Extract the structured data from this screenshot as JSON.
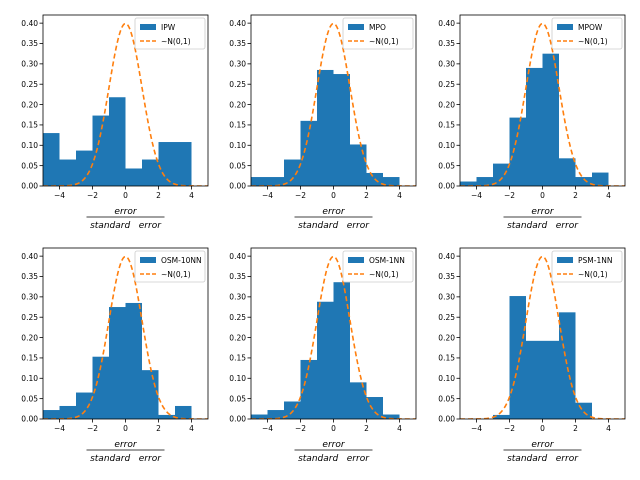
{
  "colors": {
    "bar": "#1f77b4",
    "normal_curve": "#ff7f0e",
    "axes": "#000000",
    "background": "#ffffff"
  },
  "chart_data": [
    {
      "type": "bar",
      "title": "",
      "legend": [
        "IPW",
        "~N(0,1)"
      ],
      "legend_position": "top-right",
      "xlabel_numerator": "error",
      "xlabel_denominator": "standard   error",
      "xlim": [
        -5,
        5
      ],
      "ylim": [
        0,
        0.42
      ],
      "xticks": [
        -4,
        -2,
        0,
        2,
        4
      ],
      "yticks": [
        0.0,
        0.05,
        0.1,
        0.15,
        0.2,
        0.25,
        0.3,
        0.35,
        0.4
      ],
      "ytick_labels": [
        "0.00",
        "0.05",
        "0.10",
        "0.15",
        "0.20",
        "0.25",
        "0.30",
        "0.35",
        "0.40"
      ],
      "bin_edges": [
        -5.0,
        -4.0,
        -3.0,
        -2.0,
        -1.0,
        0.0,
        1.0,
        2.0,
        3.0,
        4.0
      ],
      "values": [
        0.13,
        0.065,
        0.087,
        0.173,
        0.218,
        0.043,
        0.065,
        0.108,
        0.108
      ]
    },
    {
      "type": "bar",
      "title": "",
      "legend": [
        "MPO",
        "~N(0,1)"
      ],
      "legend_position": "top-right",
      "xlabel_numerator": "error",
      "xlabel_denominator": "standard   error",
      "xlim": [
        -5,
        5
      ],
      "ylim": [
        0,
        0.42
      ],
      "xticks": [
        -4,
        -2,
        0,
        2,
        4
      ],
      "yticks": [
        0.0,
        0.05,
        0.1,
        0.15,
        0.2,
        0.25,
        0.3,
        0.35,
        0.4
      ],
      "ytick_labels": [
        "0.00",
        "0.05",
        "0.10",
        "0.15",
        "0.20",
        "0.25",
        "0.30",
        "0.35",
        "0.40"
      ],
      "bin_edges": [
        -5.0,
        -4.0,
        -3.0,
        -2.0,
        -1.0,
        0.0,
        1.0,
        2.0,
        3.0,
        4.0
      ],
      "values": [
        0.022,
        0.022,
        0.065,
        0.16,
        0.285,
        0.275,
        0.102,
        0.032,
        0.022
      ]
    },
    {
      "type": "bar",
      "title": "",
      "legend": [
        "MPOW",
        "~N(0,1)"
      ],
      "legend_position": "top-right",
      "xlabel_numerator": "error",
      "xlabel_denominator": "standard   error",
      "xlim": [
        -5,
        5
      ],
      "ylim": [
        0,
        0.42
      ],
      "xticks": [
        -4,
        -2,
        0,
        2,
        4
      ],
      "yticks": [
        0.0,
        0.05,
        0.1,
        0.15,
        0.2,
        0.25,
        0.3,
        0.35,
        0.4
      ],
      "ytick_labels": [
        "0.00",
        "0.05",
        "0.10",
        "0.15",
        "0.20",
        "0.25",
        "0.30",
        "0.35",
        "0.40"
      ],
      "bin_edges": [
        -5.0,
        -4.0,
        -3.0,
        -2.0,
        -1.0,
        0.0,
        1.0,
        2.0,
        3.0,
        4.0
      ],
      "values": [
        0.011,
        0.022,
        0.055,
        0.168,
        0.29,
        0.325,
        0.068,
        0.022,
        0.033
      ]
    },
    {
      "type": "bar",
      "title": "",
      "legend": [
        "OSM-10NN",
        "~N(0,1)"
      ],
      "legend_position": "top-right",
      "xlabel_numerator": "error",
      "xlabel_denominator": "standard   error",
      "xlim": [
        -5,
        5
      ],
      "ylim": [
        0,
        0.42
      ],
      "xticks": [
        -4,
        -2,
        0,
        2,
        4
      ],
      "yticks": [
        0.0,
        0.05,
        0.1,
        0.15,
        0.2,
        0.25,
        0.3,
        0.35,
        0.4
      ],
      "ytick_labels": [
        "0.00",
        "0.05",
        "0.10",
        "0.15",
        "0.20",
        "0.25",
        "0.30",
        "0.35",
        "0.40"
      ],
      "bin_edges": [
        -5.0,
        -4.0,
        -3.0,
        -2.0,
        -1.0,
        0.0,
        1.0,
        2.0,
        3.0,
        4.0
      ],
      "values": [
        0.022,
        0.032,
        0.065,
        0.153,
        0.275,
        0.285,
        0.12,
        0.01,
        0.032
      ]
    },
    {
      "type": "bar",
      "title": "",
      "legend": [
        "OSM-1NN",
        "~N(0,1)"
      ],
      "legend_position": "top-right",
      "xlabel_numerator": "error",
      "xlabel_denominator": "standard   error",
      "xlim": [
        -5,
        5
      ],
      "ylim": [
        0,
        0.42
      ],
      "xticks": [
        -4,
        -2,
        0,
        2,
        4
      ],
      "yticks": [
        0.0,
        0.05,
        0.1,
        0.15,
        0.2,
        0.25,
        0.3,
        0.35,
        0.4
      ],
      "ytick_labels": [
        "0.00",
        "0.05",
        "0.10",
        "0.15",
        "0.20",
        "0.25",
        "0.30",
        "0.35",
        "0.40"
      ],
      "bin_edges": [
        -5.0,
        -4.0,
        -3.0,
        -2.0,
        -1.0,
        0.0,
        1.0,
        2.0,
        3.0,
        4.0
      ],
      "values": [
        0.011,
        0.022,
        0.043,
        0.145,
        0.288,
        0.336,
        0.09,
        0.054,
        0.011
      ]
    },
    {
      "type": "bar",
      "title": "",
      "legend": [
        "PSM-1NN",
        "~N(0,1)"
      ],
      "legend_position": "top-right",
      "xlabel_numerator": "error",
      "xlabel_denominator": "standard   error",
      "xlim": [
        -5,
        5
      ],
      "ylim": [
        0,
        0.42
      ],
      "xticks": [
        -4,
        -2,
        0,
        2,
        4
      ],
      "yticks": [
        0.0,
        0.05,
        0.1,
        0.15,
        0.2,
        0.25,
        0.3,
        0.35,
        0.4
      ],
      "ytick_labels": [
        "0.00",
        "0.05",
        "0.10",
        "0.15",
        "0.20",
        "0.25",
        "0.30",
        "0.35",
        "0.40"
      ],
      "bin_edges": [
        -3.0,
        -2.0,
        -1.0,
        0.0,
        1.0,
        2.0,
        3.0
      ],
      "values": [
        0.01,
        0.302,
        0.192,
        0.192,
        0.262,
        0.04
      ]
    }
  ]
}
